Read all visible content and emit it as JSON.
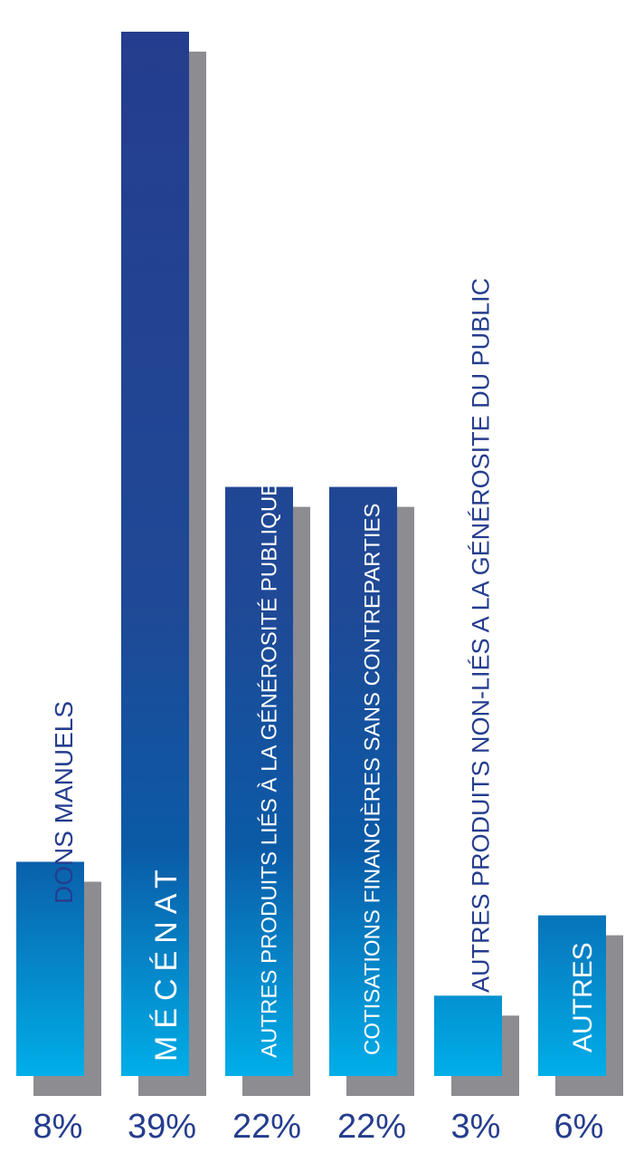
{
  "chart_data": {
    "type": "bar",
    "categories": [
      "DONS MANUELS",
      "MÉCÉNAT",
      "AUTRES PRODUITS LIÉS À LA GÉNÉROSITÉ PUBLIQUE",
      "COTISATIONS FINANCIÈRES SANS CONTREPARTIES",
      "AUTRES PRODUITS NON-LIÉS A LA GÉNÉROSITE DU PUBLIC",
      "AUTRES"
    ],
    "values": [
      8,
      39,
      22,
      22,
      3,
      6
    ],
    "value_labels": [
      "8%",
      "39%",
      "22%",
      "22%",
      "3%",
      "6%"
    ],
    "unit": "%",
    "title": "",
    "xlabel": "",
    "ylabel": "",
    "grid": false,
    "legend": "none",
    "colors": {
      "bar_top": "#253d8e",
      "bar_mid": "#0b5aa6",
      "bar_bottom": "#00aee8",
      "shadow": "#8c8c91",
      "text": "#253d8e",
      "label_inside": "#ffffff"
    }
  }
}
